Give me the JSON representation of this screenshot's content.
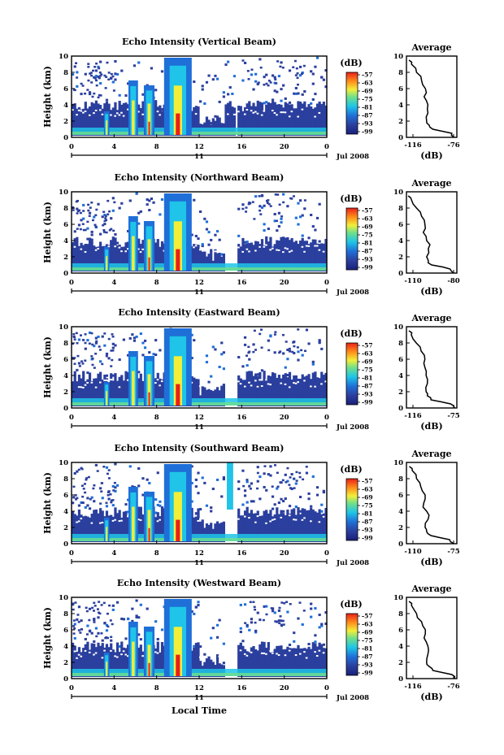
{
  "figure": {
    "xlabel": "Local Time",
    "day_label": "11",
    "month_year": "Jul 2008",
    "ylabel": "Height (km)",
    "avg_title": "Average",
    "avg_xlabel": "(dB)",
    "colorbar_label": "(dB)"
  },
  "chart_data": [
    {
      "type": "heatmap",
      "title": "Echo Intensity (Vertical Beam)",
      "xlabel": "Local Time",
      "ylabel": "Height (km)",
      "x_ticks": [
        "0",
        "4",
        "8",
        "12",
        "16",
        "20",
        "0"
      ],
      "xlim": [
        0,
        24
      ],
      "y_ticks": [
        "0",
        "2",
        "4",
        "6",
        "8",
        "10"
      ],
      "ylim": [
        0,
        10
      ],
      "colorbar": {
        "label": "(dB)",
        "ticks": [
          "-57",
          "-63",
          "-69",
          "-75",
          "-81",
          "-87",
          "-93",
          "-99"
        ]
      },
      "plumes_local_time": [
        3.3,
        5.8,
        7.3,
        10.0
      ],
      "data_gap_local_time": [
        15.3,
        15.5
      ]
    },
    {
      "type": "heatmap",
      "title": "Echo Intensity (Northward Beam)",
      "xlabel": "Local Time",
      "ylabel": "Height (km)",
      "x_ticks": [
        "0",
        "4",
        "8",
        "12",
        "16",
        "20",
        "0"
      ],
      "xlim": [
        0,
        24
      ],
      "y_ticks": [
        "0",
        "2",
        "4",
        "6",
        "8",
        "10"
      ],
      "ylim": [
        0,
        10
      ],
      "colorbar": {
        "label": "(dB)",
        "ticks": [
          "-57",
          "-63",
          "-69",
          "-75",
          "-81",
          "-87",
          "-93",
          "-99"
        ]
      },
      "plumes_local_time": [
        3.3,
        5.8,
        7.3,
        10.0
      ],
      "data_gap_local_time": [
        14.5,
        15.5
      ]
    },
    {
      "type": "heatmap",
      "title": "Echo Intensity (Eastward Beam)",
      "xlabel": "Local Time",
      "ylabel": "Height (km)",
      "x_ticks": [
        "0",
        "4",
        "8",
        "12",
        "16",
        "20",
        "0"
      ],
      "xlim": [
        0,
        24
      ],
      "y_ticks": [
        "0",
        "2",
        "4",
        "6",
        "8",
        "10"
      ],
      "ylim": [
        0,
        10
      ],
      "colorbar": {
        "label": "(dB)",
        "ticks": [
          "-57",
          "-63",
          "-69",
          "-75",
          "-81",
          "-87",
          "-93",
          "-99"
        ]
      },
      "plumes_local_time": [
        3.3,
        5.8,
        7.3,
        10.0
      ],
      "data_gap_local_time": [
        14.5,
        15.5
      ]
    },
    {
      "type": "heatmap",
      "title": "Echo Intensity (Southward Beam)",
      "xlabel": "Local Time",
      "ylabel": "Height (km)",
      "x_ticks": [
        "0",
        "4",
        "8",
        "12",
        "16",
        "20",
        "0"
      ],
      "xlim": [
        0,
        24
      ],
      "y_ticks": [
        "0",
        "2",
        "4",
        "6",
        "8",
        "10"
      ],
      "ylim": [
        0,
        10
      ],
      "colorbar": {
        "label": "(dB)",
        "ticks": [
          "-57",
          "-63",
          "-69",
          "-75",
          "-81",
          "-87",
          "-93",
          "-99"
        ]
      },
      "plumes_local_time": [
        3.3,
        5.8,
        7.3,
        10.0
      ],
      "data_gap_local_time": [
        14.5,
        15.5
      ]
    },
    {
      "type": "heatmap",
      "title": "Echo Intensity (Westward Beam)",
      "xlabel": "Local Time",
      "ylabel": "Height (km)",
      "x_ticks": [
        "0",
        "4",
        "8",
        "12",
        "16",
        "20",
        "0"
      ],
      "xlim": [
        0,
        24
      ],
      "y_ticks": [
        "0",
        "2",
        "4",
        "6",
        "8",
        "10"
      ],
      "ylim": [
        0,
        10
      ],
      "colorbar": {
        "label": "(dB)",
        "ticks": [
          "-57",
          "-63",
          "-69",
          "-75",
          "-81",
          "-87",
          "-93",
          "-99"
        ]
      },
      "plumes_local_time": [
        3.3,
        5.8,
        7.3,
        10.0
      ],
      "data_gap_local_time": [
        14.5,
        15.5
      ]
    },
    {
      "type": "line",
      "title": "Average",
      "xlabel": "(dB)",
      "ylabel": "",
      "x_ticks": [
        "-116",
        "-76"
      ],
      "xlim": [
        -116,
        -76
      ],
      "y_ticks": [
        "0",
        "2",
        "4",
        "6",
        "8",
        "10"
      ],
      "ylim": [
        0,
        10
      ],
      "profile": {
        "height_km": [
          0,
          0.5,
          1,
          1.5,
          2,
          3,
          4,
          5,
          6,
          7,
          8,
          9,
          9.5
        ],
        "db": [
          -78,
          -80,
          -95,
          -98,
          -100,
          -99,
          -99,
          -102,
          -101,
          -104,
          -108,
          -112,
          -114
        ]
      }
    },
    {
      "type": "line",
      "title": "Average",
      "xlabel": "(dB)",
      "ylabel": "",
      "x_ticks": [
        "-110",
        "-80"
      ],
      "xlim": [
        -110,
        -80
      ],
      "y_ticks": [
        "0",
        "2",
        "4",
        "6",
        "8",
        "10"
      ],
      "ylim": [
        0,
        10
      ],
      "profile": {
        "height_km": [
          0,
          0.5,
          1,
          1.5,
          2,
          3,
          4,
          5,
          6,
          7,
          8,
          9,
          9.5
        ],
        "db": [
          -82,
          -84,
          -95,
          -97,
          -98,
          -97,
          -98,
          -100,
          -99,
          -101,
          -104,
          -107,
          -109
        ]
      }
    },
    {
      "type": "line",
      "title": "Average",
      "xlabel": "(dB)",
      "ylabel": "",
      "x_ticks": [
        "-116",
        "-75"
      ],
      "xlim": [
        -116,
        -75
      ],
      "y_ticks": [
        "0",
        "2",
        "4",
        "6",
        "8",
        "10"
      ],
      "ylim": [
        0,
        10
      ],
      "profile": {
        "height_km": [
          0,
          0.5,
          1,
          1.5,
          2,
          3,
          4,
          5,
          6,
          7,
          8,
          9,
          9.5
        ],
        "db": [
          -77,
          -80,
          -96,
          -99,
          -100,
          -99,
          -100,
          -101,
          -101,
          -104,
          -108,
          -112,
          -114
        ]
      }
    },
    {
      "type": "line",
      "title": "Average",
      "xlabel": "(dB)",
      "ylabel": "",
      "x_ticks": [
        "-110",
        "-75"
      ],
      "xlim": [
        -110,
        -75
      ],
      "y_ticks": [
        "0",
        "2",
        "4",
        "6",
        "8",
        "10"
      ],
      "ylim": [
        0,
        10
      ],
      "profile": {
        "height_km": [
          0,
          0.5,
          1,
          1.5,
          2,
          3,
          4,
          5,
          6,
          7,
          8,
          9,
          9.5
        ],
        "db": [
          -77,
          -80,
          -93,
          -96,
          -97,
          -95,
          -96,
          -98,
          -97,
          -100,
          -103,
          -106,
          -108
        ]
      }
    },
    {
      "type": "line",
      "title": "Average",
      "xlabel": "(dB)",
      "ylabel": "",
      "x_ticks": [
        "-116",
        "-76"
      ],
      "xlim": [
        -116,
        -76
      ],
      "y_ticks": [
        "0",
        "2",
        "4",
        "6",
        "8",
        "10"
      ],
      "ylim": [
        0,
        10
      ],
      "profile": {
        "height_km": [
          0,
          0.5,
          1,
          1.5,
          2,
          3,
          4,
          5,
          6,
          7,
          8,
          9,
          9.5
        ],
        "db": [
          -78,
          -80,
          -95,
          -98,
          -100,
          -99,
          -99,
          -102,
          -101,
          -104,
          -108,
          -112,
          -114
        ]
      }
    }
  ],
  "colors": {
    "jet": [
      "#00008f",
      "#0000ff",
      "#0080ff",
      "#00ffff",
      "#80ff80",
      "#ffff00",
      "#ff8000",
      "#ff0000",
      "#800000"
    ],
    "background": "#2b3f9e",
    "axis": "#000000"
  }
}
